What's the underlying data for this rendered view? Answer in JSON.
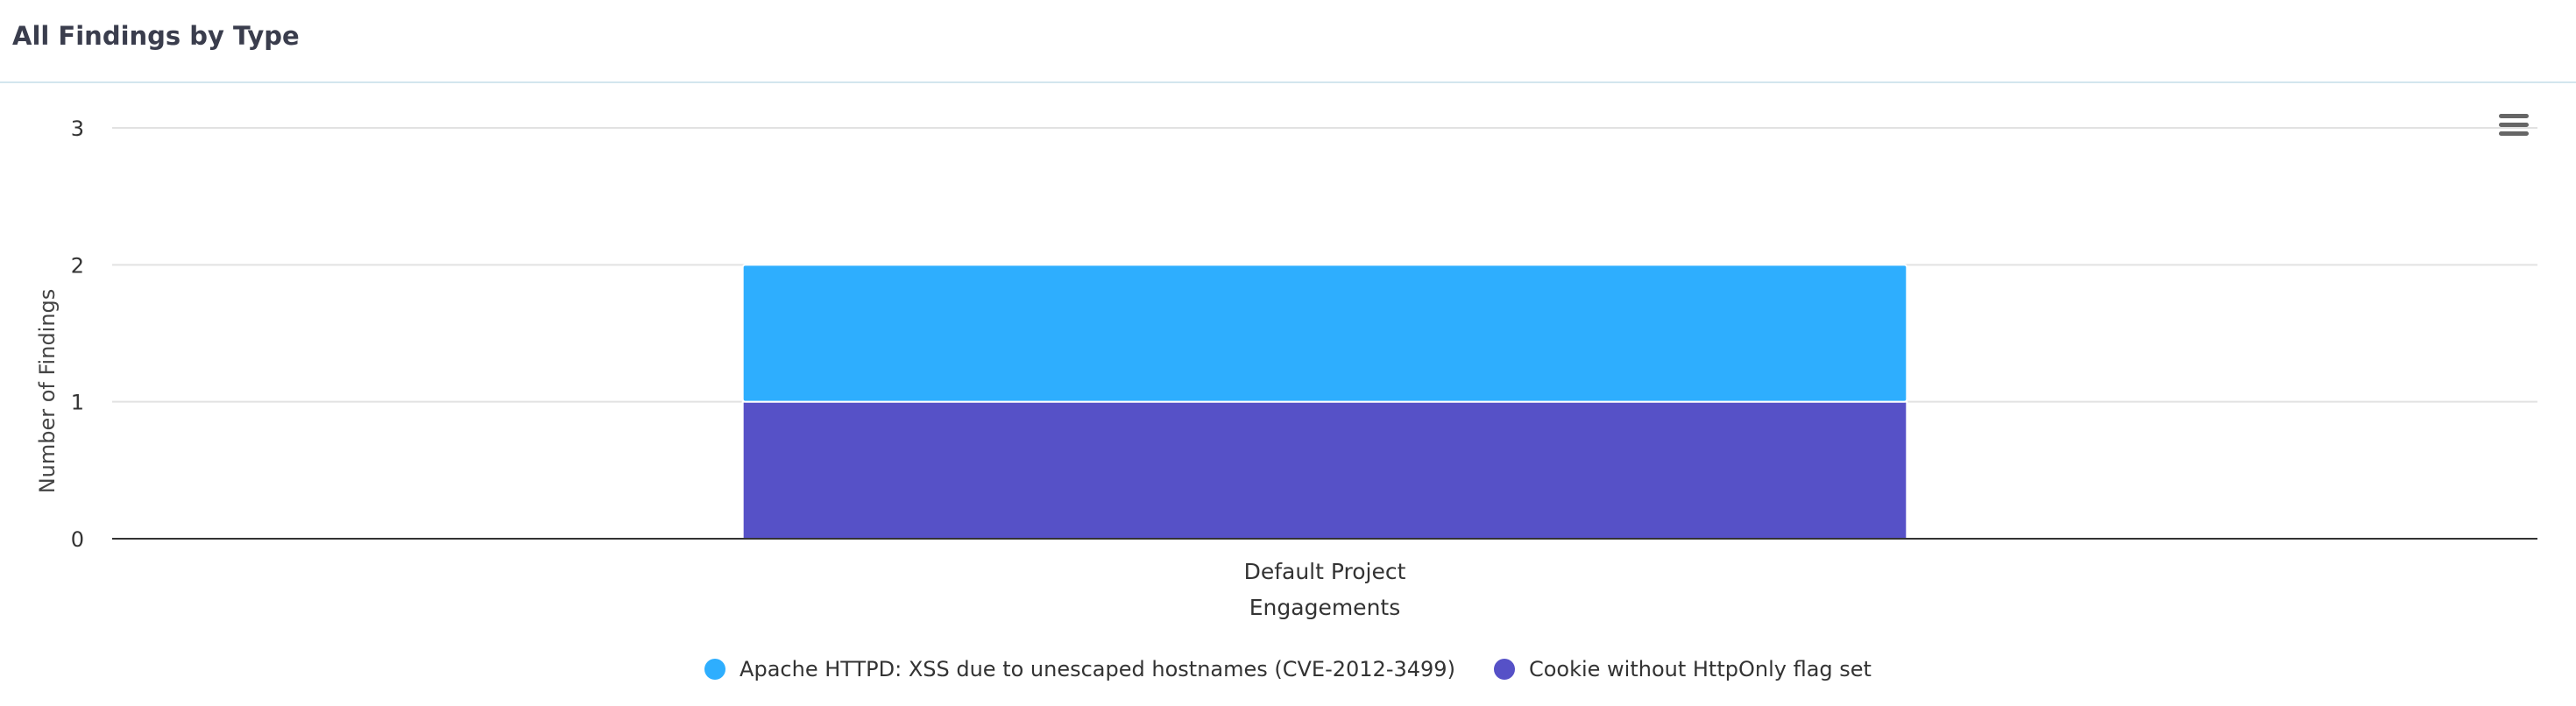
{
  "panel": {
    "title": "All Findings by Type"
  },
  "icons": {
    "menu": "hamburger-menu-icon"
  },
  "chart_data": {
    "type": "bar",
    "stacked": true,
    "categories": [
      "Default Project"
    ],
    "series": [
      {
        "name": "Apache HTTPD: XSS due to unescaped hostnames (CVE-2012-3499)",
        "values": [
          1
        ],
        "color": "#2eaefe"
      },
      {
        "name": "Cookie without HttpOnly flag set",
        "values": [
          1
        ],
        "color": "#5651c7"
      }
    ],
    "xlabel": "Engagements",
    "ylabel": "Number of Findings",
    "ylim": [
      0,
      3
    ],
    "yticks": [
      0,
      1,
      2,
      3
    ],
    "grid": true,
    "legend_position": "bottom"
  }
}
